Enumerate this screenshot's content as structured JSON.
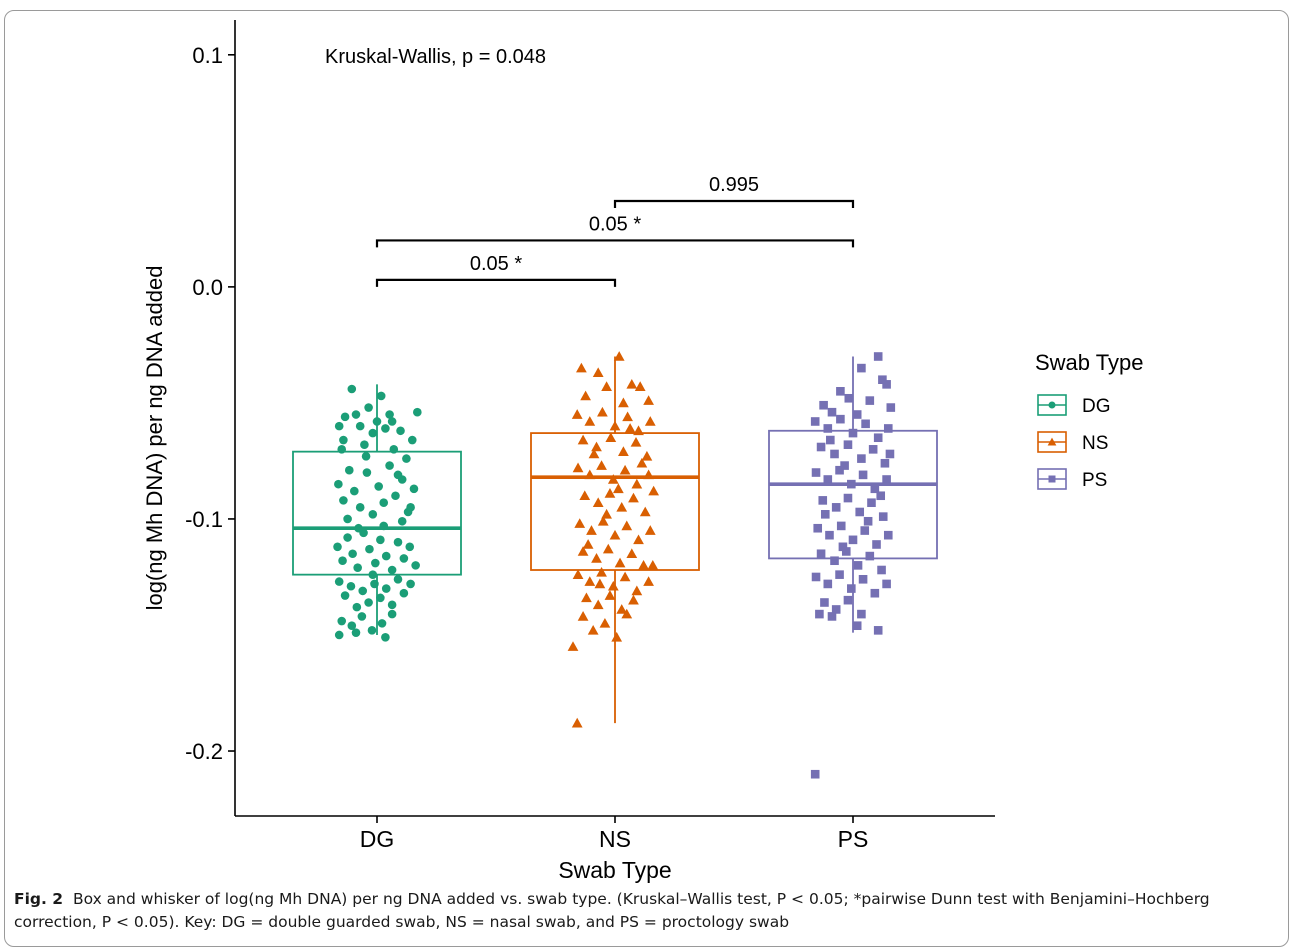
{
  "figure": {
    "label": "Fig. 2",
    "caption": "Box and whisker of log(ng Mh DNA) per ng DNA added vs. swab type. (Kruskal–Wallis test, P < 0.05; *pairwise Dunn test with Benjamini–Hochberg correction, P < 0.05). Key: DG = double guarded swab, NS = nasal swab, and PS = proctology swab"
  },
  "chart_data": {
    "type": "box",
    "title": "",
    "xlabel": "Swab Type",
    "ylabel": "log(ng Mh DNA) per ng DNA added",
    "categories": [
      "DG",
      "NS",
      "PS"
    ],
    "ylim": [
      -0.228,
      0.115
    ],
    "yticks": [
      {
        "value": 0.1,
        "label": "0.1"
      },
      {
        "value": 0.0,
        "label": "0.0"
      },
      {
        "value": -0.1,
        "label": "-0.1"
      },
      {
        "value": -0.2,
        "label": "-0.2"
      }
    ],
    "annotation": "Kruskal-Wallis, p = 0.048",
    "legend": {
      "title": "Swab Type",
      "position": "right",
      "entries": [
        {
          "name": "DG",
          "color": "#1b9e77",
          "shape": "circle"
        },
        {
          "name": "NS",
          "color": "#d95f02",
          "shape": "triangle"
        },
        {
          "name": "PS",
          "color": "#7570b3",
          "shape": "square"
        }
      ]
    },
    "boxes": [
      {
        "name": "DG",
        "color": "#1b9e77",
        "whisker_low": -0.15,
        "q1": -0.124,
        "median": -0.104,
        "q3": -0.071,
        "whisker_high": -0.042
      },
      {
        "name": "NS",
        "color": "#d95f02",
        "whisker_low": -0.188,
        "q1": -0.122,
        "median": -0.082,
        "q3": -0.063,
        "whisker_high": -0.03
      },
      {
        "name": "PS",
        "color": "#7570b3",
        "whisker_low": -0.149,
        "q1": -0.117,
        "median": -0.085,
        "q3": -0.062,
        "whisker_high": -0.03
      }
    ],
    "comparisons": [
      {
        "from": "DG",
        "to": "NS",
        "y": 0.0,
        "label": "0.05 *"
      },
      {
        "from": "DG",
        "to": "PS",
        "y": 0.017,
        "label": "0.05 *"
      },
      {
        "from": "NS",
        "to": "PS",
        "y": 0.034,
        "label": "0.995"
      }
    ],
    "points": {
      "DG": [
        [
          -0.45,
          -0.06
        ],
        [
          -0.42,
          -0.07
        ],
        [
          -0.38,
          -0.056
        ],
        [
          -0.3,
          -0.044
        ],
        [
          -0.25,
          -0.055
        ],
        [
          -0.2,
          -0.06
        ],
        [
          -0.15,
          -0.068
        ],
        [
          -0.1,
          -0.052
        ],
        [
          -0.05,
          -0.063
        ],
        [
          0.0,
          -0.058
        ],
        [
          0.05,
          -0.047
        ],
        [
          0.1,
          -0.061
        ],
        [
          0.15,
          -0.055
        ],
        [
          0.2,
          -0.07
        ],
        [
          0.28,
          -0.062
        ],
        [
          0.35,
          -0.074
        ],
        [
          0.42,
          -0.066
        ],
        [
          0.48,
          -0.054
        ],
        [
          -0.46,
          -0.085
        ],
        [
          -0.4,
          -0.092
        ],
        [
          -0.33,
          -0.079
        ],
        [
          -0.27,
          -0.088
        ],
        [
          -0.2,
          -0.095
        ],
        [
          -0.12,
          -0.08
        ],
        [
          -0.05,
          -0.098
        ],
        [
          0.02,
          -0.086
        ],
        [
          0.08,
          -0.093
        ],
        [
          0.15,
          -0.077
        ],
        [
          0.22,
          -0.09
        ],
        [
          0.3,
          -0.083
        ],
        [
          0.37,
          -0.097
        ],
        [
          0.44,
          -0.087
        ],
        [
          -0.47,
          -0.112
        ],
        [
          -0.41,
          -0.118
        ],
        [
          -0.35,
          -0.108
        ],
        [
          -0.29,
          -0.115
        ],
        [
          -0.23,
          -0.121
        ],
        [
          -0.16,
          -0.106
        ],
        [
          -0.09,
          -0.113
        ],
        [
          -0.02,
          -0.119
        ],
        [
          0.04,
          -0.109
        ],
        [
          0.11,
          -0.116
        ],
        [
          0.18,
          -0.122
        ],
        [
          0.25,
          -0.11
        ],
        [
          0.32,
          -0.117
        ],
        [
          0.39,
          -0.112
        ],
        [
          0.46,
          -0.12
        ],
        [
          -0.45,
          -0.127
        ],
        [
          -0.38,
          -0.133
        ],
        [
          -0.31,
          -0.129
        ],
        [
          -0.24,
          -0.138
        ],
        [
          -0.17,
          -0.131
        ],
        [
          -0.1,
          -0.136
        ],
        [
          -0.03,
          -0.128
        ],
        [
          0.04,
          -0.134
        ],
        [
          0.11,
          -0.13
        ],
        [
          0.18,
          -0.137
        ],
        [
          0.25,
          -0.126
        ],
        [
          0.32,
          -0.132
        ],
        [
          0.4,
          -0.128
        ],
        [
          -0.42,
          -0.144
        ],
        [
          -0.3,
          -0.146
        ],
        [
          -0.18,
          -0.142
        ],
        [
          -0.06,
          -0.148
        ],
        [
          0.06,
          -0.145
        ],
        [
          0.18,
          -0.141
        ],
        [
          -0.45,
          -0.15
        ],
        [
          -0.25,
          -0.149
        ],
        [
          0.1,
          -0.151
        ],
        [
          -0.35,
          -0.1
        ],
        [
          -0.22,
          -0.104
        ],
        [
          0.08,
          -0.103
        ],
        [
          0.3,
          -0.101
        ],
        [
          -0.13,
          -0.073
        ],
        [
          0.25,
          -0.081
        ],
        [
          -0.4,
          -0.066
        ],
        [
          0.4,
          -0.095
        ],
        [
          -0.05,
          -0.124
        ],
        [
          0.18,
          -0.058
        ]
      ],
      "NS": [
        [
          -0.4,
          -0.035
        ],
        [
          -0.2,
          -0.037
        ],
        [
          0.05,
          -0.03
        ],
        [
          0.2,
          -0.042
        ],
        [
          0.3,
          -0.043
        ],
        [
          -0.1,
          -0.043
        ],
        [
          0.4,
          -0.049
        ],
        [
          -0.35,
          -0.047
        ],
        [
          0.1,
          -0.05
        ],
        [
          -0.45,
          -0.055
        ],
        [
          -0.3,
          -0.058
        ],
        [
          -0.15,
          -0.054
        ],
        [
          0.0,
          -0.06
        ],
        [
          0.15,
          -0.056
        ],
        [
          0.28,
          -0.062
        ],
        [
          0.42,
          -0.058
        ],
        [
          -0.38,
          -0.066
        ],
        [
          -0.22,
          -0.069
        ],
        [
          -0.05,
          -0.065
        ],
        [
          0.1,
          -0.071
        ],
        [
          0.25,
          -0.067
        ],
        [
          0.38,
          -0.073
        ],
        [
          -0.44,
          -0.078
        ],
        [
          -0.3,
          -0.081
        ],
        [
          -0.16,
          -0.077
        ],
        [
          -0.02,
          -0.083
        ],
        [
          0.12,
          -0.079
        ],
        [
          0.26,
          -0.085
        ],
        [
          0.4,
          -0.081
        ],
        [
          -0.36,
          -0.09
        ],
        [
          -0.2,
          -0.093
        ],
        [
          -0.06,
          -0.089
        ],
        [
          0.08,
          -0.095
        ],
        [
          0.22,
          -0.091
        ],
        [
          0.36,
          -0.097
        ],
        [
          0.46,
          -0.088
        ],
        [
          -0.42,
          -0.102
        ],
        [
          -0.28,
          -0.105
        ],
        [
          -0.14,
          -0.101
        ],
        [
          0.0,
          -0.107
        ],
        [
          0.14,
          -0.103
        ],
        [
          0.28,
          -0.109
        ],
        [
          0.42,
          -0.105
        ],
        [
          -0.38,
          -0.114
        ],
        [
          -0.22,
          -0.117
        ],
        [
          -0.08,
          -0.113
        ],
        [
          0.06,
          -0.119
        ],
        [
          0.2,
          -0.115
        ],
        [
          0.34,
          -0.12
        ],
        [
          -0.44,
          -0.124
        ],
        [
          -0.3,
          -0.127
        ],
        [
          -0.16,
          -0.123
        ],
        [
          -0.02,
          -0.129
        ],
        [
          0.12,
          -0.125
        ],
        [
          0.26,
          -0.131
        ],
        [
          0.4,
          -0.127
        ],
        [
          -0.34,
          -0.134
        ],
        [
          -0.2,
          -0.137
        ],
        [
          -0.06,
          -0.133
        ],
        [
          0.08,
          -0.139
        ],
        [
          0.22,
          -0.135
        ],
        [
          -0.38,
          -0.142
        ],
        [
          -0.12,
          -0.145
        ],
        [
          0.14,
          -0.141
        ],
        [
          -0.26,
          -0.148
        ],
        [
          0.02,
          -0.151
        ],
        [
          -0.5,
          -0.155
        ],
        [
          -0.45,
          -0.188
        ],
        [
          -0.25,
          -0.072
        ],
        [
          0.32,
          -0.076
        ],
        [
          -0.1,
          -0.098
        ],
        [
          0.18,
          -0.061
        ],
        [
          -0.32,
          -0.111
        ],
        [
          0.45,
          -0.12
        ],
        [
          0.04,
          -0.087
        ],
        [
          -0.18,
          -0.128
        ]
      ],
      "PS": [
        [
          0.3,
          -0.03
        ],
        [
          0.1,
          -0.035
        ],
        [
          0.35,
          -0.04
        ],
        [
          0.4,
          -0.042
        ],
        [
          -0.15,
          -0.045
        ],
        [
          -0.05,
          -0.048
        ],
        [
          0.2,
          -0.049
        ],
        [
          -0.35,
          -0.051
        ],
        [
          0.45,
          -0.052
        ],
        [
          -0.25,
          -0.054
        ],
        [
          -0.45,
          -0.058
        ],
        [
          -0.3,
          -0.061
        ],
        [
          -0.15,
          -0.057
        ],
        [
          0.0,
          -0.063
        ],
        [
          0.15,
          -0.059
        ],
        [
          0.3,
          -0.065
        ],
        [
          0.42,
          -0.061
        ],
        [
          -0.38,
          -0.069
        ],
        [
          -0.22,
          -0.072
        ],
        [
          -0.06,
          -0.068
        ],
        [
          0.1,
          -0.074
        ],
        [
          0.24,
          -0.07
        ],
        [
          0.38,
          -0.076
        ],
        [
          -0.44,
          -0.08
        ],
        [
          -0.3,
          -0.083
        ],
        [
          -0.16,
          -0.079
        ],
        [
          -0.02,
          -0.085
        ],
        [
          0.12,
          -0.081
        ],
        [
          0.26,
          -0.087
        ],
        [
          0.4,
          -0.083
        ],
        [
          -0.36,
          -0.092
        ],
        [
          -0.2,
          -0.095
        ],
        [
          -0.06,
          -0.091
        ],
        [
          0.08,
          -0.097
        ],
        [
          0.22,
          -0.093
        ],
        [
          0.36,
          -0.099
        ],
        [
          -0.42,
          -0.104
        ],
        [
          -0.28,
          -0.107
        ],
        [
          -0.14,
          -0.103
        ],
        [
          0.0,
          -0.109
        ],
        [
          0.14,
          -0.105
        ],
        [
          0.28,
          -0.111
        ],
        [
          0.42,
          -0.107
        ],
        [
          -0.38,
          -0.115
        ],
        [
          -0.22,
          -0.118
        ],
        [
          -0.08,
          -0.114
        ],
        [
          0.06,
          -0.12
        ],
        [
          0.2,
          -0.116
        ],
        [
          0.34,
          -0.122
        ],
        [
          -0.44,
          -0.125
        ],
        [
          -0.3,
          -0.128
        ],
        [
          -0.16,
          -0.124
        ],
        [
          -0.02,
          -0.13
        ],
        [
          0.12,
          -0.126
        ],
        [
          0.26,
          -0.132
        ],
        [
          0.4,
          -0.128
        ],
        [
          -0.34,
          -0.136
        ],
        [
          -0.2,
          -0.139
        ],
        [
          -0.06,
          -0.135
        ],
        [
          0.1,
          -0.141
        ],
        [
          -0.25,
          -0.142
        ],
        [
          -0.4,
          -0.141
        ],
        [
          0.3,
          -0.148
        ],
        [
          0.05,
          -0.146
        ],
        [
          -0.45,
          -0.21
        ],
        [
          -0.1,
          -0.077
        ],
        [
          0.33,
          -0.09
        ],
        [
          -0.27,
          -0.066
        ],
        [
          0.18,
          -0.101
        ],
        [
          -0.12,
          -0.112
        ],
        [
          0.44,
          -0.072
        ],
        [
          0.05,
          -0.055
        ],
        [
          -0.33,
          -0.098
        ]
      ]
    }
  }
}
